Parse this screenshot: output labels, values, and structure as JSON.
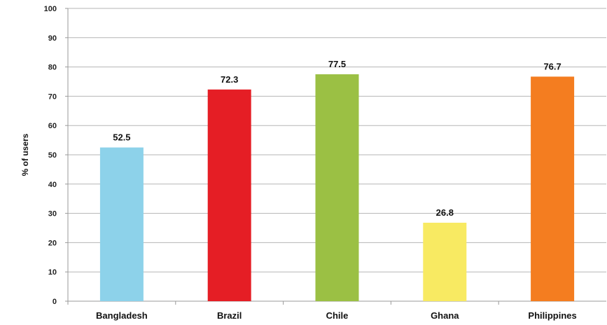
{
  "chart_data": {
    "type": "bar",
    "title": "",
    "xlabel": "",
    "ylabel": "% of users",
    "ylim": [
      0,
      100
    ],
    "y_ticks": [
      "0",
      "10",
      "20",
      "30",
      "40",
      "50",
      "60",
      "70",
      "80",
      "90",
      "100"
    ],
    "categories": [
      "Bangladesh",
      "Brazil",
      "Chile",
      "Ghana",
      "Philippines"
    ],
    "values": [
      52.5,
      72.3,
      77.5,
      26.8,
      76.7
    ],
    "value_labels": [
      "52.5",
      "72.3",
      "77.5",
      "26.8",
      "76.7"
    ],
    "colors": [
      "#8dd2ea",
      "#e51e25",
      "#9bc044",
      "#f8ea62",
      "#f47d20"
    ],
    "grid": true,
    "legend": "none"
  }
}
